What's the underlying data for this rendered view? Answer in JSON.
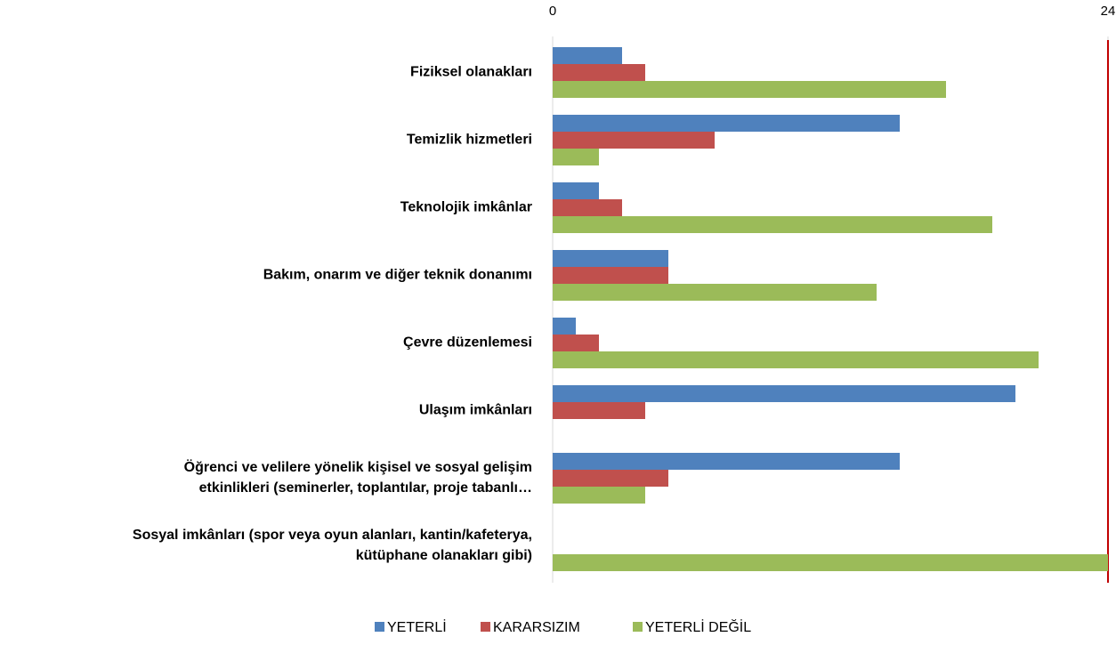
{
  "chart_data": {
    "type": "bar",
    "orientation": "horizontal",
    "categories": [
      "Fiziksel olanakları",
      "Temizlik hizmetleri",
      "Teknolojik imkânlar",
      "Bakım, onarım ve diğer teknik donanımı",
      "Çevre düzenlemesi",
      "Ulaşım imkânları",
      "Öğrenci ve velilere yönelik kişisel ve sosyal gelişim\netkinlikleri (seminerler, toplantılar, proje tabanlı…",
      "Sosyal imkânları (spor veya oyun alanları, kantin/kafeterya,\nkütüphane olanakları gibi)"
    ],
    "series": [
      {
        "name": "YETERLİ",
        "color": "#4f81bd",
        "values": [
          3,
          15,
          2,
          5,
          1,
          20,
          15,
          0
        ]
      },
      {
        "name": "KARARSIZIM",
        "color": "#c0504d",
        "values": [
          4,
          7,
          3,
          5,
          2,
          4,
          5,
          0
        ]
      },
      {
        "name": "YETERLİ DEĞİL",
        "color": "#9bbb59",
        "values": [
          17,
          2,
          19,
          14,
          21,
          0,
          4,
          24
        ]
      }
    ],
    "xlim": [
      0,
      24
    ],
    "xticks": [
      0,
      24
    ],
    "legend": "bottom"
  }
}
